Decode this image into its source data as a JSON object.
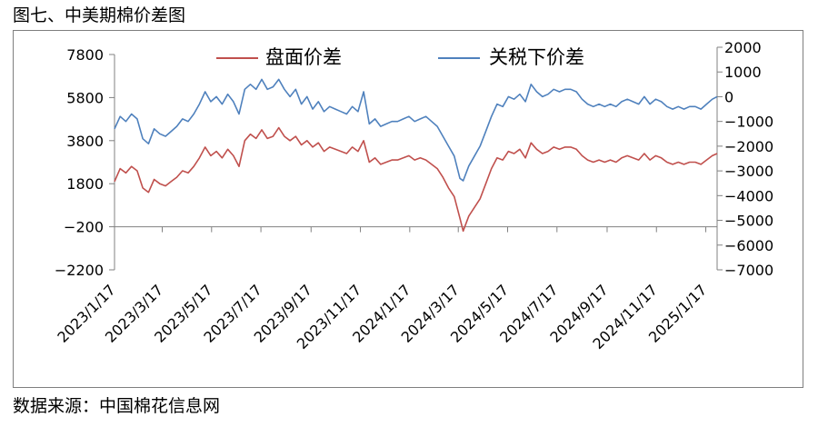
{
  "figure": {
    "title": "图七、中美期棉价差图",
    "source": "数据来源：中国棉花信息网"
  },
  "chart_data": {
    "type": "line",
    "xlabel": "",
    "ylabel": "",
    "x_axis": {
      "range": [
        "2023-01-17",
        "2025-01-31"
      ],
      "tick_labels": [
        "2023/1/17",
        "2023/3/17",
        "2023/5/17",
        "2023/7/17",
        "2023/9/17",
        "2023/11/17",
        "2024/1/17",
        "2024/3/17",
        "2024/5/17",
        "2024/7/17",
        "2024/9/17",
        "2024/11/17",
        "2025/1/17"
      ]
    },
    "y_left": {
      "range": [
        -2200,
        7800
      ],
      "ticks": [
        7800,
        5800,
        3800,
        1800,
        -200,
        -2200
      ],
      "tick_labels": [
        "7800",
        "5800",
        "3800",
        "1800",
        "−200",
        "−2200"
      ]
    },
    "y_right": {
      "range": [
        -7000,
        2000
      ],
      "ticks": [
        2000,
        1000,
        0,
        -1000,
        -2000,
        -3000,
        -4000,
        -5000,
        -6000,
        -7000
      ],
      "tick_labels": [
        "2000",
        "1000",
        "0",
        "−1000",
        "−2000",
        "−3000",
        "−4000",
        "−5000",
        "−6000",
        "−7000"
      ]
    },
    "grid": false,
    "legend_position": "top",
    "series": [
      {
        "name": "盘面价差",
        "axis": "left",
        "color": "#c0504d",
        "points": [
          [
            "2023-01-17",
            1900
          ],
          [
            "2023-01-24",
            2500
          ],
          [
            "2023-01-31",
            2300
          ],
          [
            "2023-02-07",
            2600
          ],
          [
            "2023-02-14",
            2400
          ],
          [
            "2023-02-21",
            1600
          ],
          [
            "2023-02-28",
            1400
          ],
          [
            "2023-03-07",
            2000
          ],
          [
            "2023-03-14",
            1800
          ],
          [
            "2023-03-21",
            1700
          ],
          [
            "2023-03-28",
            1900
          ],
          [
            "2023-04-04",
            2100
          ],
          [
            "2023-04-11",
            2400
          ],
          [
            "2023-04-18",
            2300
          ],
          [
            "2023-04-25",
            2600
          ],
          [
            "2023-05-02",
            3000
          ],
          [
            "2023-05-09",
            3500
          ],
          [
            "2023-05-16",
            3100
          ],
          [
            "2023-05-23",
            3300
          ],
          [
            "2023-05-30",
            3000
          ],
          [
            "2023-06-06",
            3400
          ],
          [
            "2023-06-13",
            3100
          ],
          [
            "2023-06-20",
            2600
          ],
          [
            "2023-06-27",
            3800
          ],
          [
            "2023-07-04",
            4100
          ],
          [
            "2023-07-11",
            3900
          ],
          [
            "2023-07-18",
            4300
          ],
          [
            "2023-07-25",
            3900
          ],
          [
            "2023-08-01",
            4000
          ],
          [
            "2023-08-08",
            4400
          ],
          [
            "2023-08-15",
            4000
          ],
          [
            "2023-08-22",
            3800
          ],
          [
            "2023-08-29",
            4000
          ],
          [
            "2023-09-05",
            3600
          ],
          [
            "2023-09-12",
            3800
          ],
          [
            "2023-09-19",
            3500
          ],
          [
            "2023-09-26",
            3700
          ],
          [
            "2023-10-03",
            3300
          ],
          [
            "2023-10-10",
            3500
          ],
          [
            "2023-10-17",
            3400
          ],
          [
            "2023-10-24",
            3300
          ],
          [
            "2023-10-31",
            3200
          ],
          [
            "2023-11-07",
            3500
          ],
          [
            "2023-11-14",
            3300
          ],
          [
            "2023-11-21",
            3800
          ],
          [
            "2023-11-28",
            2800
          ],
          [
            "2023-12-05",
            3000
          ],
          [
            "2023-12-12",
            2700
          ],
          [
            "2023-12-19",
            2800
          ],
          [
            "2023-12-26",
            2900
          ],
          [
            "2024-01-02",
            2900
          ],
          [
            "2024-01-09",
            3000
          ],
          [
            "2024-01-16",
            3100
          ],
          [
            "2024-01-23",
            2900
          ],
          [
            "2024-01-30",
            3000
          ],
          [
            "2024-02-06",
            2900
          ],
          [
            "2024-02-13",
            2700
          ],
          [
            "2024-02-20",
            2500
          ],
          [
            "2024-02-27",
            2100
          ],
          [
            "2024-03-05",
            1600
          ],
          [
            "2024-03-12",
            1200
          ],
          [
            "2024-03-19",
            200
          ],
          [
            "2024-03-23",
            -400
          ],
          [
            "2024-03-30",
            300
          ],
          [
            "2024-04-06",
            700
          ],
          [
            "2024-04-13",
            1100
          ],
          [
            "2024-04-20",
            1800
          ],
          [
            "2024-04-27",
            2500
          ],
          [
            "2024-05-04",
            3000
          ],
          [
            "2024-05-11",
            2900
          ],
          [
            "2024-05-18",
            3300
          ],
          [
            "2024-05-25",
            3200
          ],
          [
            "2024-06-01",
            3400
          ],
          [
            "2024-06-08",
            3000
          ],
          [
            "2024-06-15",
            3700
          ],
          [
            "2024-06-22",
            3400
          ],
          [
            "2024-06-29",
            3200
          ],
          [
            "2024-07-06",
            3300
          ],
          [
            "2024-07-13",
            3500
          ],
          [
            "2024-07-20",
            3400
          ],
          [
            "2024-07-27",
            3500
          ],
          [
            "2024-08-03",
            3500
          ],
          [
            "2024-08-10",
            3400
          ],
          [
            "2024-08-17",
            3100
          ],
          [
            "2024-08-24",
            2900
          ],
          [
            "2024-08-31",
            2800
          ],
          [
            "2024-09-07",
            2900
          ],
          [
            "2024-09-14",
            2800
          ],
          [
            "2024-09-21",
            2900
          ],
          [
            "2024-09-28",
            2800
          ],
          [
            "2024-10-05",
            3000
          ],
          [
            "2024-10-12",
            3100
          ],
          [
            "2024-10-19",
            3000
          ],
          [
            "2024-10-26",
            2900
          ],
          [
            "2024-11-02",
            3200
          ],
          [
            "2024-11-09",
            2900
          ],
          [
            "2024-11-16",
            3100
          ],
          [
            "2024-11-23",
            3000
          ],
          [
            "2024-11-30",
            2800
          ],
          [
            "2024-12-07",
            2700
          ],
          [
            "2024-12-14",
            2800
          ],
          [
            "2024-12-21",
            2700
          ],
          [
            "2024-12-28",
            2800
          ],
          [
            "2025-01-04",
            2800
          ],
          [
            "2025-01-11",
            2700
          ],
          [
            "2025-01-18",
            2900
          ],
          [
            "2025-01-25",
            3100
          ],
          [
            "2025-01-31",
            3200
          ]
        ]
      },
      {
        "name": "关税下价差",
        "axis": "right",
        "color": "#4f81bd",
        "points": [
          [
            "2023-01-17",
            -1300
          ],
          [
            "2023-01-24",
            -800
          ],
          [
            "2023-01-31",
            -1000
          ],
          [
            "2023-02-07",
            -700
          ],
          [
            "2023-02-14",
            -900
          ],
          [
            "2023-02-21",
            -1700
          ],
          [
            "2023-02-28",
            -1900
          ],
          [
            "2023-03-07",
            -1300
          ],
          [
            "2023-03-14",
            -1500
          ],
          [
            "2023-03-21",
            -1600
          ],
          [
            "2023-03-28",
            -1400
          ],
          [
            "2023-04-04",
            -1200
          ],
          [
            "2023-04-11",
            -900
          ],
          [
            "2023-04-18",
            -1000
          ],
          [
            "2023-04-25",
            -700
          ],
          [
            "2023-05-02",
            -300
          ],
          [
            "2023-05-09",
            200
          ],
          [
            "2023-05-16",
            -200
          ],
          [
            "2023-05-23",
            0
          ],
          [
            "2023-05-30",
            -300
          ],
          [
            "2023-06-06",
            100
          ],
          [
            "2023-06-13",
            -200
          ],
          [
            "2023-06-20",
            -700
          ],
          [
            "2023-06-27",
            300
          ],
          [
            "2023-07-04",
            500
          ],
          [
            "2023-07-11",
            300
          ],
          [
            "2023-07-18",
            700
          ],
          [
            "2023-07-25",
            300
          ],
          [
            "2023-08-01",
            400
          ],
          [
            "2023-08-08",
            700
          ],
          [
            "2023-08-15",
            300
          ],
          [
            "2023-08-22",
            0
          ],
          [
            "2023-08-29",
            300
          ],
          [
            "2023-09-05",
            -300
          ],
          [
            "2023-09-12",
            0
          ],
          [
            "2023-09-19",
            -500
          ],
          [
            "2023-09-26",
            -200
          ],
          [
            "2023-10-03",
            -600
          ],
          [
            "2023-10-10",
            -400
          ],
          [
            "2023-10-17",
            -500
          ],
          [
            "2023-10-24",
            -600
          ],
          [
            "2023-10-31",
            -700
          ],
          [
            "2023-11-07",
            -400
          ],
          [
            "2023-11-14",
            -600
          ],
          [
            "2023-11-21",
            200
          ],
          [
            "2023-11-28",
            -1100
          ],
          [
            "2023-12-05",
            -900
          ],
          [
            "2023-12-12",
            -1200
          ],
          [
            "2023-12-19",
            -1100
          ],
          [
            "2023-12-26",
            -1000
          ],
          [
            "2024-01-02",
            -1000
          ],
          [
            "2024-01-09",
            -900
          ],
          [
            "2024-01-16",
            -800
          ],
          [
            "2024-01-23",
            -1000
          ],
          [
            "2024-01-30",
            -900
          ],
          [
            "2024-02-06",
            -800
          ],
          [
            "2024-02-13",
            -1000
          ],
          [
            "2024-02-20",
            -1200
          ],
          [
            "2024-02-27",
            -1600
          ],
          [
            "2024-03-05",
            -2000
          ],
          [
            "2024-03-12",
            -2400
          ],
          [
            "2024-03-19",
            -3300
          ],
          [
            "2024-03-23",
            -3400
          ],
          [
            "2024-03-30",
            -2800
          ],
          [
            "2024-04-06",
            -2400
          ],
          [
            "2024-04-13",
            -2000
          ],
          [
            "2024-04-20",
            -1400
          ],
          [
            "2024-04-27",
            -800
          ],
          [
            "2024-05-04",
            -300
          ],
          [
            "2024-05-11",
            -400
          ],
          [
            "2024-05-18",
            0
          ],
          [
            "2024-05-25",
            -100
          ],
          [
            "2024-06-01",
            100
          ],
          [
            "2024-06-08",
            -200
          ],
          [
            "2024-06-15",
            500
          ],
          [
            "2024-06-22",
            200
          ],
          [
            "2024-06-29",
            0
          ],
          [
            "2024-07-06",
            100
          ],
          [
            "2024-07-13",
            300
          ],
          [
            "2024-07-20",
            200
          ],
          [
            "2024-07-27",
            300
          ],
          [
            "2024-08-03",
            300
          ],
          [
            "2024-08-10",
            200
          ],
          [
            "2024-08-17",
            -100
          ],
          [
            "2024-08-24",
            -300
          ],
          [
            "2024-08-31",
            -400
          ],
          [
            "2024-09-07",
            -300
          ],
          [
            "2024-09-14",
            -400
          ],
          [
            "2024-09-21",
            -300
          ],
          [
            "2024-09-28",
            -400
          ],
          [
            "2024-10-05",
            -200
          ],
          [
            "2024-10-12",
            -100
          ],
          [
            "2024-10-19",
            -200
          ],
          [
            "2024-10-26",
            -300
          ],
          [
            "2024-11-02",
            0
          ],
          [
            "2024-11-09",
            -300
          ],
          [
            "2024-11-16",
            -100
          ],
          [
            "2024-11-23",
            -200
          ],
          [
            "2024-11-30",
            -400
          ],
          [
            "2024-12-07",
            -500
          ],
          [
            "2024-12-14",
            -400
          ],
          [
            "2024-12-21",
            -500
          ],
          [
            "2024-12-28",
            -400
          ],
          [
            "2025-01-04",
            -400
          ],
          [
            "2025-01-11",
            -500
          ],
          [
            "2025-01-18",
            -300
          ],
          [
            "2025-01-25",
            -100
          ],
          [
            "2025-01-31",
            0
          ]
        ]
      }
    ]
  }
}
